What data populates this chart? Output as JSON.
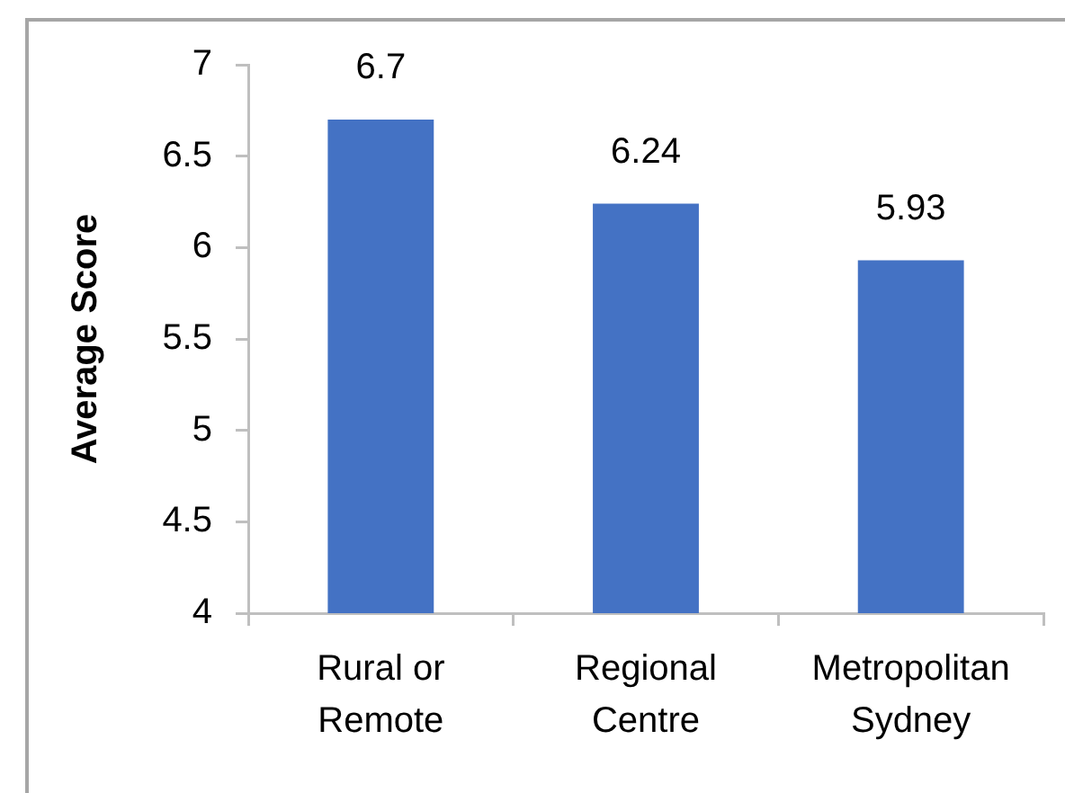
{
  "chart_data": {
    "type": "bar",
    "categories": [
      "Rural or Remote",
      "Regional Centre",
      "Metropolitan Sydney"
    ],
    "values": [
      6.7,
      6.24,
      5.93
    ],
    "color": "#4472c4",
    "ylabel": "Average Score",
    "ylim": [
      4,
      7
    ],
    "yticks": [
      4,
      4.5,
      5,
      5.5,
      6,
      6.5,
      7
    ],
    "data_labels": true
  }
}
